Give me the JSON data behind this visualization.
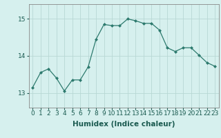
{
  "x": [
    0,
    1,
    2,
    3,
    4,
    5,
    6,
    7,
    8,
    9,
    10,
    11,
    12,
    13,
    14,
    15,
    16,
    17,
    18,
    19,
    20,
    21,
    22,
    23
  ],
  "y": [
    13.15,
    13.55,
    13.65,
    13.4,
    13.05,
    13.35,
    13.35,
    13.7,
    14.45,
    14.85,
    14.82,
    14.82,
    15.0,
    14.95,
    14.88,
    14.88,
    14.7,
    14.22,
    14.12,
    14.22,
    14.22,
    14.02,
    13.82,
    13.72
  ],
  "line_color": "#2d7a6e",
  "marker": "D",
  "marker_size": 2.0,
  "bg_color": "#d6f0ee",
  "grid_color": "#b8d8d4",
  "axis_color": "#888888",
  "xlabel": "Humidex (Indice chaleur)",
  "xlabel_fontsize": 7.5,
  "ylim": [
    12.6,
    15.4
  ],
  "yticks": [
    13,
    14,
    15
  ],
  "xticks": [
    0,
    1,
    2,
    3,
    4,
    5,
    6,
    7,
    8,
    9,
    10,
    11,
    12,
    13,
    14,
    15,
    16,
    17,
    18,
    19,
    20,
    21,
    22,
    23
  ],
  "tick_fontsize": 6.5
}
